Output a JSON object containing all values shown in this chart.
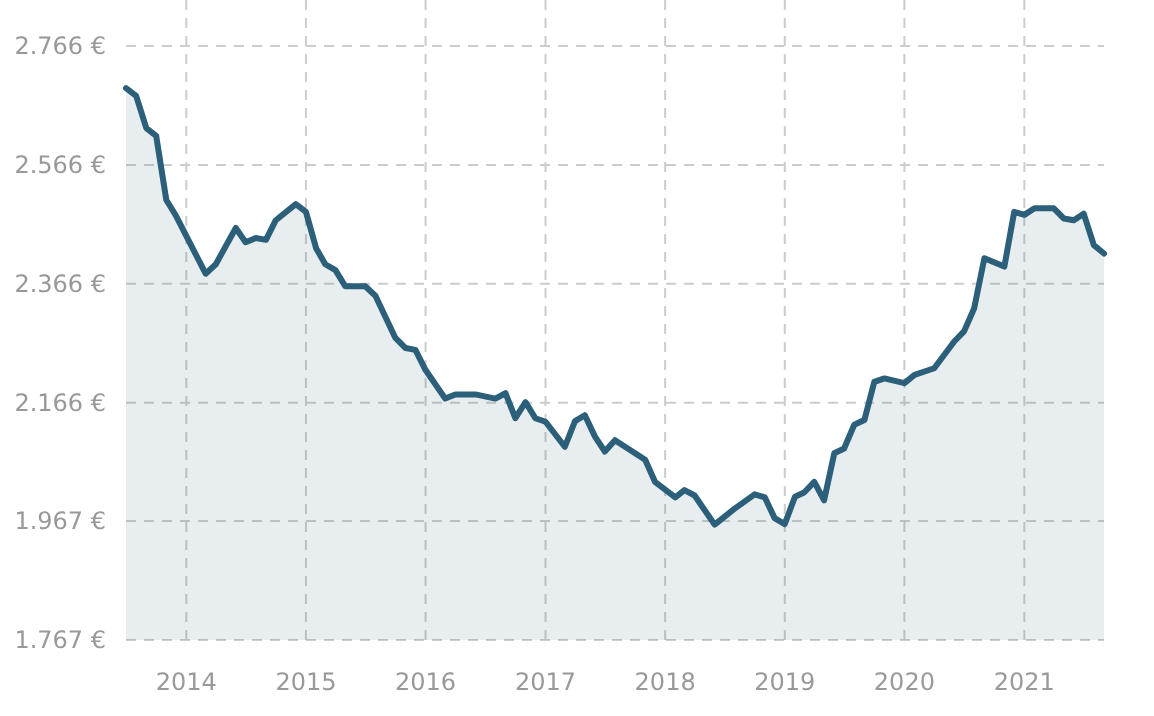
{
  "chart_data": {
    "type": "area",
    "x": [
      "2013-07",
      "2013-08",
      "2013-09",
      "2013-10",
      "2013-11",
      "2013-12",
      "2014-03",
      "2014-04",
      "2014-06",
      "2014-07",
      "2014-08",
      "2014-09",
      "2014-10",
      "2014-12",
      "2015-01",
      "2015-02",
      "2015-03",
      "2015-04",
      "2015-05",
      "2015-07",
      "2015-08",
      "2015-10",
      "2015-11",
      "2015-12",
      "2016-01",
      "2016-03",
      "2016-04",
      "2016-06",
      "2016-08",
      "2016-09",
      "2016-10",
      "2016-11",
      "2016-12",
      "2017-01",
      "2017-03",
      "2017-04",
      "2017-05",
      "2017-06",
      "2017-07",
      "2017-08",
      "2017-11",
      "2017-12",
      "2018-02",
      "2018-03",
      "2018-04",
      "2018-06",
      "2018-08",
      "2018-10",
      "2018-11",
      "2018-12",
      "2019-01",
      "2019-02",
      "2019-03",
      "2019-04",
      "2019-05",
      "2019-06",
      "2019-07",
      "2019-08",
      "2019-09",
      "2019-10",
      "2019-11",
      "2020-01",
      "2020-02",
      "2020-04",
      "2020-06",
      "2020-07",
      "2020-08",
      "2020-09",
      "2020-11",
      "2020-12",
      "2021-01",
      "2021-02",
      "2021-04",
      "2021-05",
      "2021-06",
      "2021-07",
      "2021-08",
      "2021-09"
    ],
    "series": [
      {
        "color": "#2b5f7a",
        "values": [
          2695,
          2682,
          2628,
          2615,
          2507,
          2480,
          2383,
          2399,
          2460,
          2436,
          2443,
          2440,
          2473,
          2500,
          2487,
          2426,
          2399,
          2389,
          2362,
          2362,
          2346,
          2275,
          2258,
          2255,
          2221,
          2173,
          2180,
          2180,
          2173,
          2182,
          2140,
          2167,
          2140,
          2134,
          2092,
          2135,
          2145,
          2109,
          2084,
          2103,
          2070,
          2033,
          2007,
          2019,
          2010,
          1961,
          1988,
          2012,
          2007,
          1972,
          1962,
          2008,
          2015,
          2033,
          2002,
          2081,
          2089,
          2129,
          2137,
          2201,
          2207,
          2199,
          2213,
          2224,
          2269,
          2286,
          2325,
          2409,
          2395,
          2487,
          2482,
          2493,
          2493,
          2476,
          2473,
          2484,
          2431,
          2417
        ]
      }
    ],
    "xlim": [
      "2013-07",
      "2021-09"
    ],
    "xticks": [
      {
        "value": "2014-01",
        "label": "2014"
      },
      {
        "value": "2015-01",
        "label": "2015"
      },
      {
        "value": "2016-01",
        "label": "2016"
      },
      {
        "value": "2017-01",
        "label": "2017"
      },
      {
        "value": "2018-01",
        "label": "2018"
      },
      {
        "value": "2019-01",
        "label": "2019"
      },
      {
        "value": "2020-01",
        "label": "2020"
      },
      {
        "value": "2021-01",
        "label": "2021"
      }
    ],
    "ylim": [
      1767,
      2766
    ],
    "yticks": [
      {
        "value": 1767,
        "label": "1.767 €"
      },
      {
        "value": 1967,
        "label": "1.967 €"
      },
      {
        "value": 2166,
        "label": "2.166 €"
      },
      {
        "value": 2366,
        "label": "2.366 €"
      },
      {
        "value": 2566,
        "label": "2.566 €"
      },
      {
        "value": 2766,
        "label": "2.766 €"
      }
    ],
    "grid": true
  }
}
